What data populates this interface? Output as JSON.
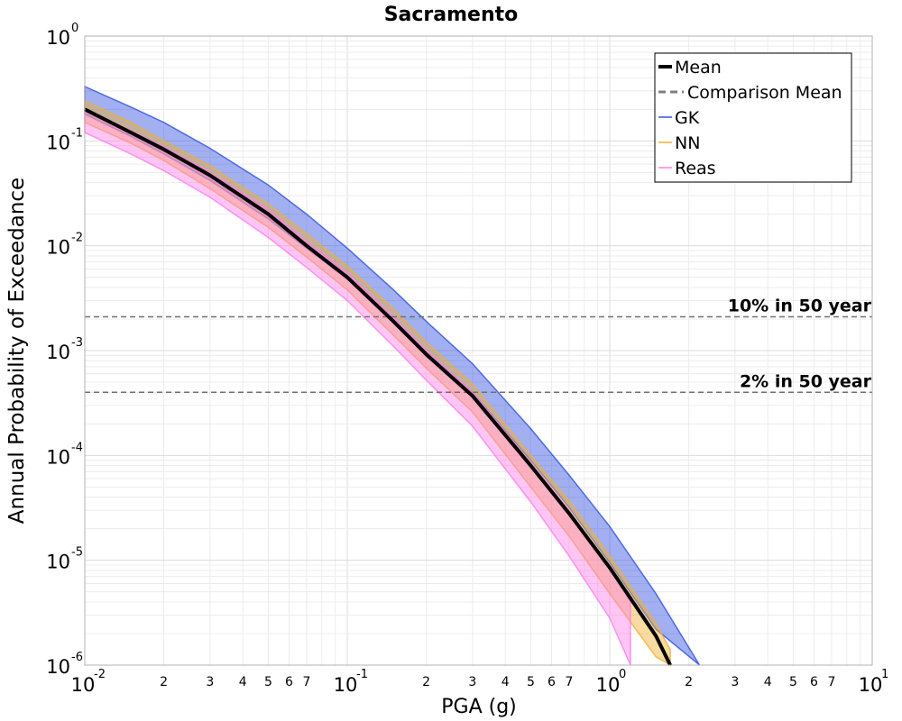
{
  "chart_data": {
    "type": "line",
    "title": "Sacramento",
    "xlabel": "PGA (g)",
    "ylabel": "Annual Probability of Exceedance",
    "x_scale": "log",
    "y_scale": "log",
    "xlim": [
      0.01,
      10
    ],
    "ylim": [
      1e-06,
      1
    ],
    "grid": true,
    "legend_position": "top-right",
    "x_ticks": [
      {
        "base": "10",
        "exp": "-2"
      },
      {
        "base": "10",
        "exp": "-1"
      },
      {
        "base": "10",
        "exp": "0"
      },
      {
        "base": "10",
        "exp": "1"
      }
    ],
    "x_minor_tick_labels": [
      "2",
      "3",
      "4",
      "5",
      "6",
      "7"
    ],
    "y_ticks": [
      {
        "base": "10",
        "exp": "0"
      },
      {
        "base": "10",
        "exp": "-1"
      },
      {
        "base": "10",
        "exp": "-2"
      },
      {
        "base": "10",
        "exp": "-3"
      },
      {
        "base": "10",
        "exp": "-4"
      },
      {
        "base": "10",
        "exp": "-5"
      },
      {
        "base": "10",
        "exp": "-6"
      }
    ],
    "reference_lines": [
      {
        "label": "10% in 50 year",
        "y": 0.0021
      },
      {
        "label": "2% in 50 year",
        "y": 0.0004
      }
    ],
    "series": [
      {
        "name": "Mean",
        "color": "#000000",
        "style": "solid",
        "x": [
          0.01,
          0.015,
          0.02,
          0.03,
          0.05,
          0.07,
          0.1,
          0.15,
          0.2,
          0.3,
          0.5,
          0.7,
          1.0,
          1.5,
          1.7
        ],
        "y": [
          0.2,
          0.12,
          0.083,
          0.047,
          0.02,
          0.01,
          0.005,
          0.0019,
          0.00092,
          0.00037,
          8e-05,
          2.8e-05,
          8.5e-06,
          1.9e-06,
          1e-06
        ]
      },
      {
        "name": "Comparison Mean",
        "color": "#808080",
        "style": "dashed",
        "x": [],
        "y": []
      },
      {
        "name": "GK",
        "color": "#3050e0",
        "style": "band",
        "x": [
          0.01,
          0.015,
          0.02,
          0.03,
          0.05,
          0.07,
          0.1,
          0.15,
          0.2,
          0.3,
          0.5,
          0.7,
          1.0,
          1.5,
          2.2
        ],
        "y_low": [
          0.18,
          0.11,
          0.075,
          0.042,
          0.018,
          0.0095,
          0.0048,
          0.0019,
          0.00095,
          0.0004,
          9e-05,
          3.2e-05,
          9.5e-06,
          2.2e-06,
          1e-06
        ],
        "y_high": [
          0.33,
          0.21,
          0.15,
          0.085,
          0.038,
          0.02,
          0.0095,
          0.0038,
          0.0019,
          0.00075,
          0.00018,
          6.5e-05,
          2.1e-05,
          4.8e-06,
          1e-06
        ]
      },
      {
        "name": "NN",
        "color": "#f0b030",
        "style": "band",
        "x": [
          0.01,
          0.015,
          0.02,
          0.03,
          0.05,
          0.07,
          0.1,
          0.15,
          0.2,
          0.3,
          0.5,
          0.7,
          1.0,
          1.5,
          1.7
        ],
        "y_low": [
          0.15,
          0.095,
          0.065,
          0.035,
          0.015,
          0.0078,
          0.0038,
          0.0014,
          0.00068,
          0.00026,
          5e-05,
          1.7e-05,
          4.8e-06,
          1.2e-06,
          1e-06
        ],
        "y_high": [
          0.24,
          0.15,
          0.1,
          0.058,
          0.025,
          0.013,
          0.0064,
          0.0025,
          0.0012,
          0.00048,
          0.0001,
          3.7e-05,
          1.1e-05,
          2.5e-06,
          1.4e-06
        ]
      },
      {
        "name": "Reas",
        "color": "#ff7ee8",
        "style": "band",
        "x": [
          0.01,
          0.015,
          0.02,
          0.03,
          0.05,
          0.07,
          0.1,
          0.15,
          0.2,
          0.3,
          0.5,
          0.7,
          1.0,
          1.2
        ],
        "y_low": [
          0.12,
          0.075,
          0.052,
          0.029,
          0.012,
          0.0062,
          0.003,
          0.0011,
          0.00052,
          0.00019,
          3.6e-05,
          1.1e-05,
          2.8e-06,
          1e-06
        ],
        "y_high": [
          0.2,
          0.125,
          0.088,
          0.05,
          0.022,
          0.011,
          0.0055,
          0.0021,
          0.001,
          0.0004,
          8.5e-05,
          3e-05,
          8.5e-06,
          4e-06
        ]
      }
    ]
  }
}
